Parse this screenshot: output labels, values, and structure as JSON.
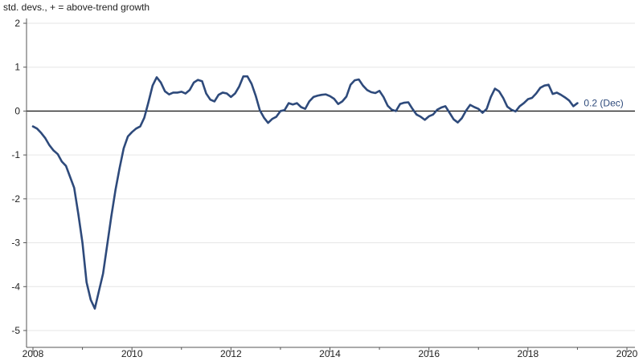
{
  "chart_data": {
    "type": "line",
    "ylabel": "std. devs., + = above-trend growth",
    "xlim": [
      2008,
      2020
    ],
    "ylim": [
      -5,
      2
    ],
    "xticks": [
      2008,
      2010,
      2012,
      2014,
      2016,
      2018,
      2020
    ],
    "yticks": [
      2,
      1,
      0,
      -1,
      -2,
      -3,
      -4,
      -5
    ],
    "grid": "horizontal",
    "zero_line": true,
    "line_color": "#2e4a7b",
    "end_label": "0.2 (Dec)",
    "series": [
      {
        "points": [
          [
            2008.0,
            -0.35
          ],
          [
            2008.083,
            -0.4
          ],
          [
            2008.167,
            -0.5
          ],
          [
            2008.25,
            -0.62
          ],
          [
            2008.333,
            -0.78
          ],
          [
            2008.417,
            -0.9
          ],
          [
            2008.5,
            -0.98
          ],
          [
            2008.583,
            -1.15
          ],
          [
            2008.667,
            -1.25
          ],
          [
            2008.75,
            -1.5
          ],
          [
            2008.833,
            -1.75
          ],
          [
            2008.917,
            -2.35
          ],
          [
            2009.0,
            -3.0
          ],
          [
            2009.083,
            -3.9
          ],
          [
            2009.167,
            -4.3
          ],
          [
            2009.25,
            -4.5
          ],
          [
            2009.333,
            -4.1
          ],
          [
            2009.417,
            -3.7
          ],
          [
            2009.5,
            -3.05
          ],
          [
            2009.583,
            -2.4
          ],
          [
            2009.667,
            -1.8
          ],
          [
            2009.75,
            -1.3
          ],
          [
            2009.833,
            -0.85
          ],
          [
            2009.917,
            -0.58
          ],
          [
            2010.0,
            -0.48
          ],
          [
            2010.083,
            -0.4
          ],
          [
            2010.167,
            -0.35
          ],
          [
            2010.25,
            -0.15
          ],
          [
            2010.333,
            0.2
          ],
          [
            2010.417,
            0.58
          ],
          [
            2010.5,
            0.77
          ],
          [
            2010.583,
            0.65
          ],
          [
            2010.667,
            0.45
          ],
          [
            2010.75,
            0.38
          ],
          [
            2010.833,
            0.42
          ],
          [
            2010.917,
            0.42
          ],
          [
            2011.0,
            0.44
          ],
          [
            2011.083,
            0.4
          ],
          [
            2011.167,
            0.48
          ],
          [
            2011.25,
            0.65
          ],
          [
            2011.333,
            0.71
          ],
          [
            2011.417,
            0.68
          ],
          [
            2011.5,
            0.4
          ],
          [
            2011.583,
            0.26
          ],
          [
            2011.667,
            0.22
          ],
          [
            2011.75,
            0.37
          ],
          [
            2011.833,
            0.42
          ],
          [
            2011.917,
            0.4
          ],
          [
            2012.0,
            0.32
          ],
          [
            2012.083,
            0.4
          ],
          [
            2012.167,
            0.56
          ],
          [
            2012.25,
            0.79
          ],
          [
            2012.333,
            0.79
          ],
          [
            2012.417,
            0.62
          ],
          [
            2012.5,
            0.35
          ],
          [
            2012.583,
            0.02
          ],
          [
            2012.667,
            -0.15
          ],
          [
            2012.75,
            -0.27
          ],
          [
            2012.833,
            -0.18
          ],
          [
            2012.917,
            -0.13
          ],
          [
            2013.0,
            0.0
          ],
          [
            2013.083,
            0.02
          ],
          [
            2013.167,
            0.18
          ],
          [
            2013.25,
            0.15
          ],
          [
            2013.333,
            0.18
          ],
          [
            2013.417,
            0.09
          ],
          [
            2013.5,
            0.05
          ],
          [
            2013.583,
            0.22
          ],
          [
            2013.667,
            0.32
          ],
          [
            2013.75,
            0.35
          ],
          [
            2013.833,
            0.37
          ],
          [
            2013.917,
            0.38
          ],
          [
            2014.0,
            0.34
          ],
          [
            2014.083,
            0.28
          ],
          [
            2014.167,
            0.16
          ],
          [
            2014.25,
            0.22
          ],
          [
            2014.333,
            0.33
          ],
          [
            2014.417,
            0.6
          ],
          [
            2014.5,
            0.7
          ],
          [
            2014.583,
            0.72
          ],
          [
            2014.667,
            0.58
          ],
          [
            2014.75,
            0.48
          ],
          [
            2014.833,
            0.43
          ],
          [
            2014.917,
            0.41
          ],
          [
            2015.0,
            0.46
          ],
          [
            2015.083,
            0.32
          ],
          [
            2015.167,
            0.12
          ],
          [
            2015.25,
            0.03
          ],
          [
            2015.333,
            0.0
          ],
          [
            2015.417,
            0.16
          ],
          [
            2015.5,
            0.19
          ],
          [
            2015.583,
            0.2
          ],
          [
            2015.667,
            0.05
          ],
          [
            2015.75,
            -0.08
          ],
          [
            2015.833,
            -0.13
          ],
          [
            2015.917,
            -0.2
          ],
          [
            2016.0,
            -0.12
          ],
          [
            2016.083,
            -0.08
          ],
          [
            2016.167,
            0.03
          ],
          [
            2016.25,
            0.08
          ],
          [
            2016.333,
            0.11
          ],
          [
            2016.417,
            -0.04
          ],
          [
            2016.5,
            -0.19
          ],
          [
            2016.583,
            -0.26
          ],
          [
            2016.667,
            -0.16
          ],
          [
            2016.75,
            0.01
          ],
          [
            2016.833,
            0.14
          ],
          [
            2016.917,
            0.09
          ],
          [
            2017.0,
            0.05
          ],
          [
            2017.083,
            -0.04
          ],
          [
            2017.167,
            0.05
          ],
          [
            2017.25,
            0.32
          ],
          [
            2017.333,
            0.51
          ],
          [
            2017.417,
            0.45
          ],
          [
            2017.5,
            0.3
          ],
          [
            2017.583,
            0.1
          ],
          [
            2017.667,
            0.03
          ],
          [
            2017.75,
            -0.01
          ],
          [
            2017.833,
            0.11
          ],
          [
            2017.917,
            0.18
          ],
          [
            2018.0,
            0.27
          ],
          [
            2018.083,
            0.3
          ],
          [
            2018.167,
            0.4
          ],
          [
            2018.25,
            0.53
          ],
          [
            2018.333,
            0.58
          ],
          [
            2018.417,
            0.6
          ],
          [
            2018.5,
            0.39
          ],
          [
            2018.583,
            0.42
          ],
          [
            2018.667,
            0.37
          ],
          [
            2018.75,
            0.31
          ],
          [
            2018.833,
            0.24
          ],
          [
            2018.917,
            0.11
          ],
          [
            2019.0,
            0.18
          ]
        ]
      }
    ]
  }
}
